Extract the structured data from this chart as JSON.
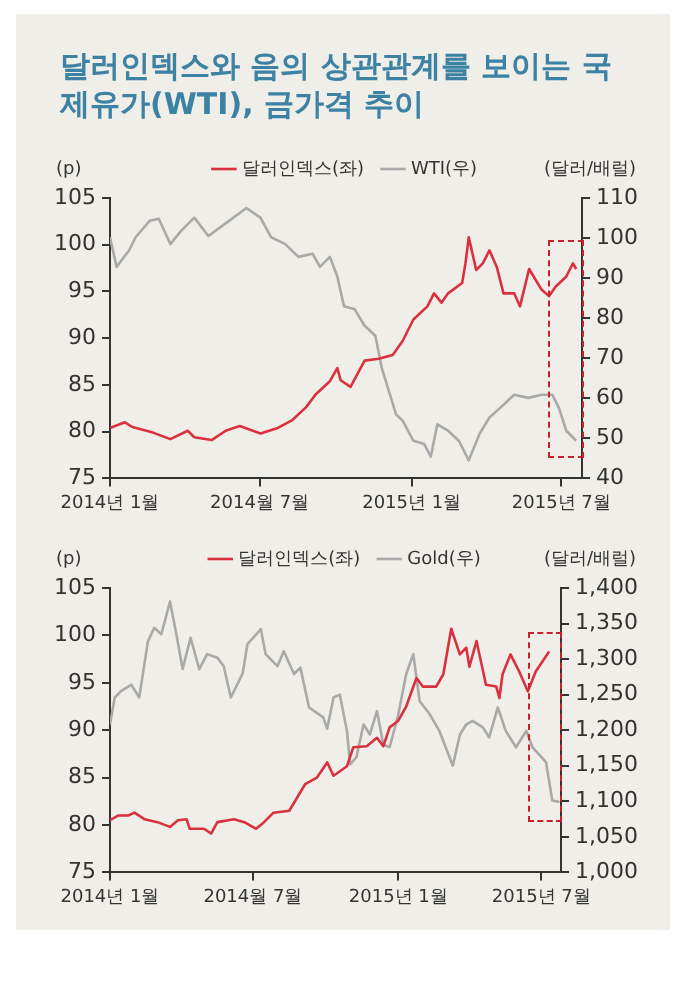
{
  "chart_data": [
    {
      "type": "line",
      "title": "달러인덱스와 음의 상관관계를 보이는 국제유가(WTI), 금가격 추이",
      "ylabel": "(p)",
      "y2label": "(달러/배럴)",
      "legend": "top",
      "grid": false,
      "xlim": [
        "2014-01-01",
        "2015-07-26"
      ],
      "xticks": [
        {
          "value": "2014-01",
          "label": "2014년 1월"
        },
        {
          "value": "2014-07",
          "label": "2014월 7월"
        },
        {
          "value": "2015-01",
          "label": "2015년 1월"
        },
        {
          "value": "2015-07",
          "label": "2015년 7월"
        }
      ],
      "ylim": [
        75,
        105
      ],
      "yticks": [
        75,
        80,
        85,
        90,
        95,
        100,
        105
      ],
      "y2lim": [
        40,
        110
      ],
      "y2ticks": [
        40,
        50,
        60,
        70,
        80,
        90,
        100,
        110
      ],
      "series": [
        {
          "name": "달러인덱스(좌)",
          "color": "#d9313f",
          "x": [
            "2014-01-01",
            "2014-01-19",
            "2014-01-28",
            "2014-02-22",
            "2014-03-15",
            "2014-04-05",
            "2014-04-13",
            "2014-05-04",
            "2014-05-21",
            "2014-06-07",
            "2014-07-02",
            "2014-07-23",
            "2014-08-09",
            "2014-08-26",
            "2014-09-07",
            "2014-09-24",
            "2014-10-03",
            "2014-10-07",
            "2014-10-19",
            "2014-11-05",
            "2014-11-22",
            "2014-12-09",
            "2014-12-21",
            "2015-01-03",
            "2015-01-20",
            "2015-01-28",
            "2015-02-06",
            "2015-02-14",
            "2015-03-03",
            "2015-03-07",
            "2015-03-11",
            "2015-03-20",
            "2015-03-28",
            "2015-04-05",
            "2015-04-14",
            "2015-04-22",
            "2015-05-05",
            "2015-05-12",
            "2015-05-23",
            "2015-06-07",
            "2015-06-16",
            "2015-06-24",
            "2015-07-07",
            "2015-07-15",
            "2015-07-19"
          ],
          "values": [
            80.4,
            81.0,
            80.5,
            79.9,
            79.2,
            80.1,
            79.4,
            79.1,
            80.1,
            80.6,
            79.8,
            80.4,
            81.2,
            82.6,
            84.0,
            85.4,
            86.8,
            85.5,
            84.8,
            87.6,
            87.8,
            88.2,
            89.7,
            92.0,
            93.4,
            94.8,
            93.8,
            94.8,
            95.9,
            98.0,
            100.8,
            97.3,
            98.0,
            99.4,
            97.6,
            94.8,
            94.8,
            93.4,
            97.4,
            95.2,
            94.5,
            95.5,
            96.6,
            98.0,
            97.4
          ]
        },
        {
          "name": "WTI(우)",
          "color": "#a9a9a9",
          "axis": "y2",
          "x": [
            "2014-01-01",
            "2014-01-09",
            "2014-01-24",
            "2014-02-01",
            "2014-02-18",
            "2014-03-01",
            "2014-03-15",
            "2014-03-28",
            "2014-04-13",
            "2014-04-30",
            "2014-05-25",
            "2014-06-15",
            "2014-07-02",
            "2014-07-15",
            "2014-08-01",
            "2014-08-17",
            "2014-09-03",
            "2014-09-12",
            "2014-09-24",
            "2014-10-03",
            "2014-10-11",
            "2014-10-24",
            "2014-11-05",
            "2014-11-18",
            "2014-11-26",
            "2014-12-13",
            "2014-12-21",
            "2015-01-03",
            "2015-01-16",
            "2015-01-24",
            "2015-02-01",
            "2015-02-14",
            "2015-02-27",
            "2015-03-11",
            "2015-03-24",
            "2015-04-05",
            "2015-04-18",
            "2015-05-05",
            "2015-05-22",
            "2015-06-07",
            "2015-06-20",
            "2015-06-28",
            "2015-07-07",
            "2015-07-19"
          ],
          "values": [
            100.2,
            92.8,
            96.9,
            100.2,
            104.3,
            104.8,
            98.5,
            101.8,
            105.1,
            100.5,
            104.3,
            107.5,
            105.1,
            100.2,
            98.5,
            95.3,
            96.1,
            92.8,
            95.3,
            90.4,
            83.0,
            82.2,
            78.1,
            75.6,
            67.4,
            56.0,
            54.4,
            49.4,
            48.6,
            45.4,
            53.5,
            51.9,
            49.4,
            44.5,
            51.1,
            55.2,
            57.6,
            60.9,
            60.1,
            60.9,
            60.9,
            57.6,
            51.9,
            49.4
          ]
        }
      ]
    },
    {
      "type": "line",
      "ylabel": "(p)",
      "y2label": "(달러/배럴)",
      "legend": "top",
      "grid": false,
      "xlim": [
        "2014-01-01",
        "2015-07-26"
      ],
      "xticks": [
        {
          "value": "2014-01",
          "label": "2014년 1월"
        },
        {
          "value": "2014-07",
          "label": "2014월 7월"
        },
        {
          "value": "2015-01",
          "label": "2015년 1월"
        },
        {
          "value": "2015-07",
          "label": "2015년 7월"
        }
      ],
      "ylim": [
        75,
        105
      ],
      "yticks": [
        75,
        80,
        85,
        90,
        95,
        100,
        105
      ],
      "y2lim": [
        1000,
        1400
      ],
      "y2ticks": [
        {
          "value": 1000,
          "label": "1,000"
        },
        {
          "value": 1050,
          "label": "1,050"
        },
        {
          "value": 1100,
          "label": "1,100"
        },
        {
          "value": 1150,
          "label": "1,150"
        },
        {
          "value": 1200,
          "label": "1,200"
        },
        {
          "value": 1250,
          "label": "1,250"
        },
        {
          "value": 1300,
          "label": "1,300"
        },
        {
          "value": 1350,
          "label": "1,350"
        },
        {
          "value": 1400,
          "label": "1,400"
        }
      ],
      "series": [
        {
          "name": "달러인덱스(좌)",
          "color": "#d9313f",
          "x": [
            "2014-01-01",
            "2014-01-11",
            "2014-01-24",
            "2014-02-01",
            "2014-02-14",
            "2014-03-02",
            "2014-03-18",
            "2014-03-28",
            "2014-04-08",
            "2014-04-12",
            "2014-04-30",
            "2014-05-09",
            "2014-05-17",
            "2014-06-07",
            "2014-06-20",
            "2014-07-05",
            "2014-07-15",
            "2014-07-27",
            "2014-08-16",
            "2014-08-26",
            "2014-09-05",
            "2014-09-20",
            "2014-10-03",
            "2014-10-11",
            "2014-10-28",
            "2014-11-05",
            "2014-11-22",
            "2014-12-05",
            "2014-12-13",
            "2014-12-21",
            "2015-01-01",
            "2015-01-11",
            "2015-01-24",
            "2015-02-01",
            "2015-02-18",
            "2015-02-27",
            "2015-03-09",
            "2015-03-20",
            "2015-03-28",
            "2015-04-01",
            "2015-04-10",
            "2015-04-22",
            "2015-05-05",
            "2015-05-09",
            "2015-05-13",
            "2015-05-23",
            "2015-06-03",
            "2015-06-14",
            "2015-06-24",
            "2015-07-11"
          ],
          "values": [
            80.5,
            81.0,
            81.0,
            81.3,
            80.6,
            80.3,
            79.8,
            80.5,
            80.6,
            79.6,
            79.6,
            79.1,
            80.3,
            80.6,
            80.3,
            79.6,
            80.3,
            81.3,
            81.5,
            82.9,
            84.3,
            85.0,
            86.6,
            85.2,
            86.2,
            88.2,
            88.3,
            89.2,
            88.3,
            90.3,
            91.0,
            92.5,
            95.5,
            94.6,
            94.6,
            95.9,
            100.7,
            98.0,
            98.7,
            96.7,
            99.4,
            94.8,
            94.6,
            93.4,
            95.9,
            98.0,
            96.2,
            94.1,
            96.2,
            98.3
          ]
        },
        {
          "name": "Gold(우)",
          "color": "#a9a9a9",
          "axis": "y2",
          "x": [
            "2014-01-01",
            "2014-01-07",
            "2014-01-15",
            "2014-01-28",
            "2014-02-07",
            "2014-02-18",
            "2014-02-26",
            "2014-03-07",
            "2014-03-18",
            "2014-03-26",
            "2014-04-03",
            "2014-04-13",
            "2014-04-24",
            "2014-05-04",
            "2014-05-17",
            "2014-05-25",
            "2014-06-03",
            "2014-06-18",
            "2014-06-24",
            "2014-07-11",
            "2014-07-17",
            "2014-08-01",
            "2014-08-09",
            "2014-08-22",
            "2014-08-30",
            "2014-09-10",
            "2014-09-28",
            "2014-10-03",
            "2014-10-11",
            "2014-10-19",
            "2014-10-28",
            "2014-11-01",
            "2014-11-09",
            "2014-11-18",
            "2014-11-26",
            "2014-12-05",
            "2014-12-13",
            "2014-12-21",
            "2015-01-01",
            "2015-01-11",
            "2015-01-20",
            "2015-01-28",
            "2015-02-10",
            "2015-02-22",
            "2015-03-11",
            "2015-03-20",
            "2015-03-28",
            "2015-04-05",
            "2015-04-18",
            "2015-04-26",
            "2015-05-07",
            "2015-05-17",
            "2015-05-30",
            "2015-06-12",
            "2015-06-20",
            "2015-07-07",
            "2015-07-15",
            "2015-07-24"
          ],
          "values": [
            1208,
            1246,
            1255,
            1264,
            1246,
            1325,
            1344,
            1335,
            1381,
            1335,
            1286,
            1330,
            1286,
            1307,
            1302,
            1290,
            1246,
            1280,
            1321,
            1342,
            1307,
            1290,
            1311,
            1279,
            1288,
            1232,
            1218,
            1202,
            1246,
            1250,
            1199,
            1152,
            1162,
            1208,
            1194,
            1227,
            1180,
            1176,
            1222,
            1279,
            1307,
            1241,
            1222,
            1199,
            1150,
            1194,
            1208,
            1213,
            1204,
            1190,
            1232,
            1199,
            1176,
            1199,
            1176,
            1155,
            1101,
            1099
          ]
        }
      ]
    }
  ]
}
